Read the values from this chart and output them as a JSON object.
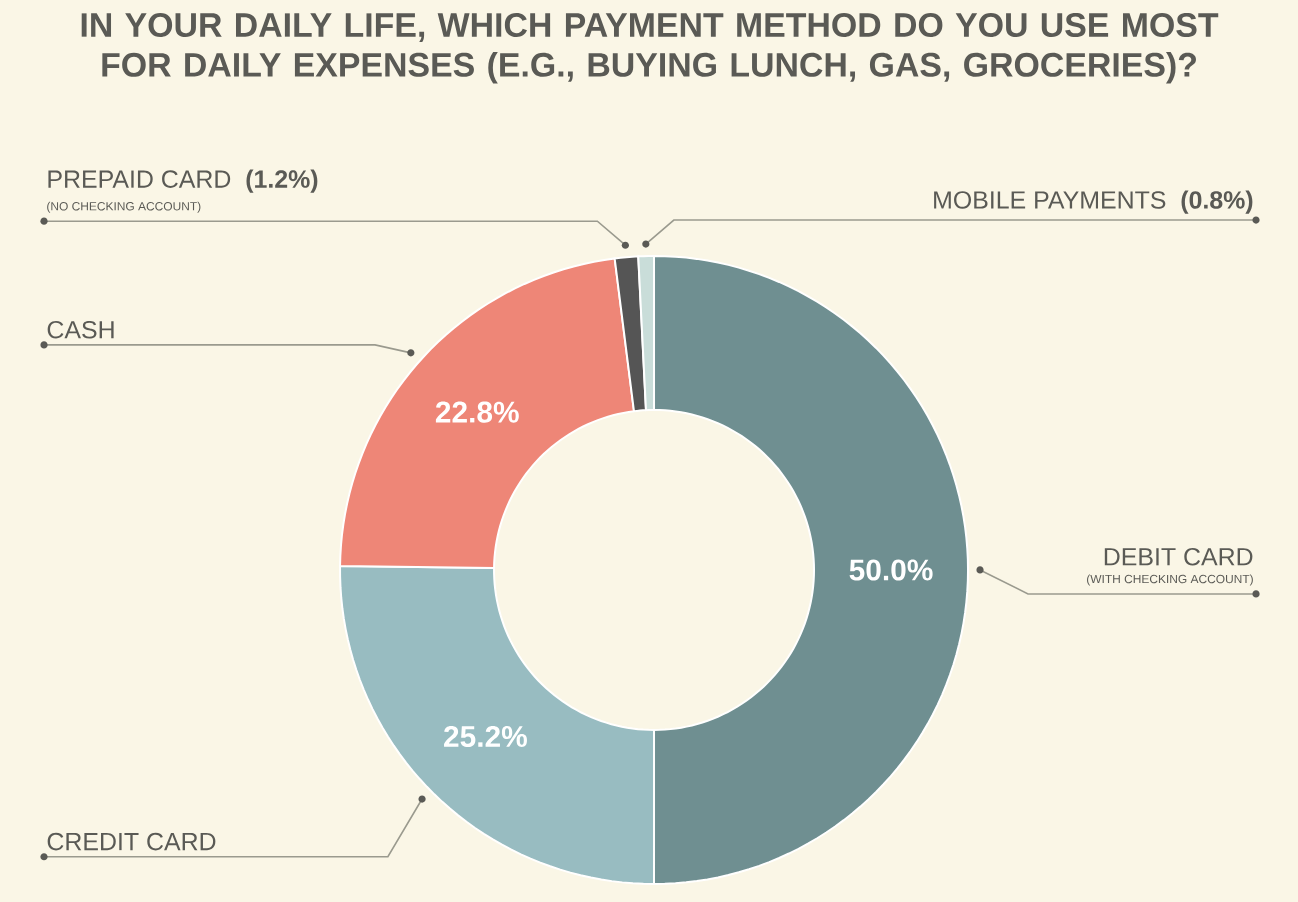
{
  "chart_data": {
    "type": "donut",
    "title": "IN YOUR DAILY LIFE, WHICH PAYMENT METHOD DO YOU USE MOST FOR DAILY EXPENSES (E.G., BUYING LUNCH, GAS, GROCERIES)?",
    "categories": [
      "DEBIT CARD",
      "CREDIT CARD",
      "CASH",
      "PREPAID CARD",
      "MOBILE PAYMENTS"
    ],
    "values": [
      50.0,
      25.2,
      22.8,
      1.2,
      0.8
    ],
    "colors": [
      "#6f8f91",
      "#98bcc1",
      "#ee8677",
      "#555555",
      "#c9ddd9"
    ],
    "value_labels": [
      "50.0%",
      "25.2%",
      "22.8%",
      "(1.2%)",
      "(0.8%)"
    ],
    "annotations": [
      "(WITH CHECKING ACCOUNT)",
      "(NO CHECKING ACCOUNT)"
    ]
  }
}
